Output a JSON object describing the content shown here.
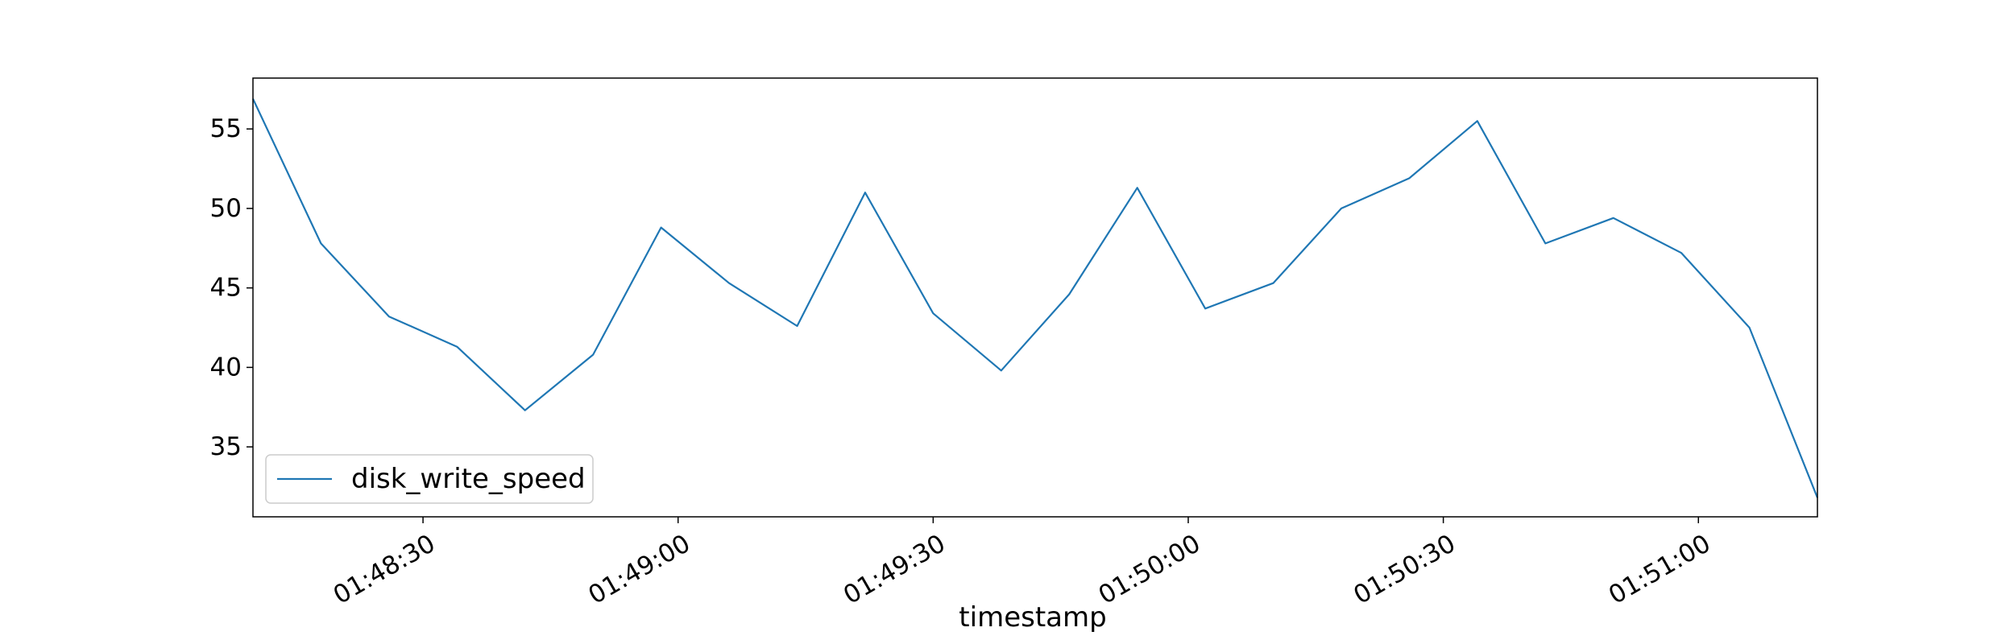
{
  "chart_data": {
    "type": "line",
    "title": "",
    "xlabel": "timestamp",
    "ylabel": "",
    "x": [
      "01:48:10",
      "01:48:18",
      "01:48:26",
      "01:48:34",
      "01:48:42",
      "01:48:50",
      "01:48:58",
      "01:49:06",
      "01:49:14",
      "01:49:22",
      "01:49:30",
      "01:49:38",
      "01:49:46",
      "01:49:54",
      "01:50:02",
      "01:50:10",
      "01:50:18",
      "01:50:26",
      "01:50:34",
      "01:50:42",
      "01:50:50",
      "01:50:58",
      "01:51:06",
      "01:51:14"
    ],
    "series": [
      {
        "name": "disk_write_speed",
        "color": "#1f77b4",
        "values": [
          56.9,
          47.8,
          43.2,
          41.3,
          37.3,
          40.8,
          48.8,
          45.3,
          42.6,
          51.0,
          43.4,
          39.8,
          44.6,
          51.3,
          43.7,
          45.3,
          50.0,
          51.9,
          55.5,
          47.8,
          49.4,
          47.2,
          42.5,
          31.8
        ]
      }
    ],
    "xlim": [
      "01:48:10",
      "01:51:14"
    ],
    "ylim": [
      30.6,
      58.2
    ],
    "xticks": [
      "01:48:30",
      "01:49:00",
      "01:49:30",
      "01:50:00",
      "01:50:30",
      "01:51:00"
    ],
    "yticks": [
      35,
      40,
      45,
      50,
      55
    ],
    "grid": false,
    "legend_position": "lower-left"
  }
}
